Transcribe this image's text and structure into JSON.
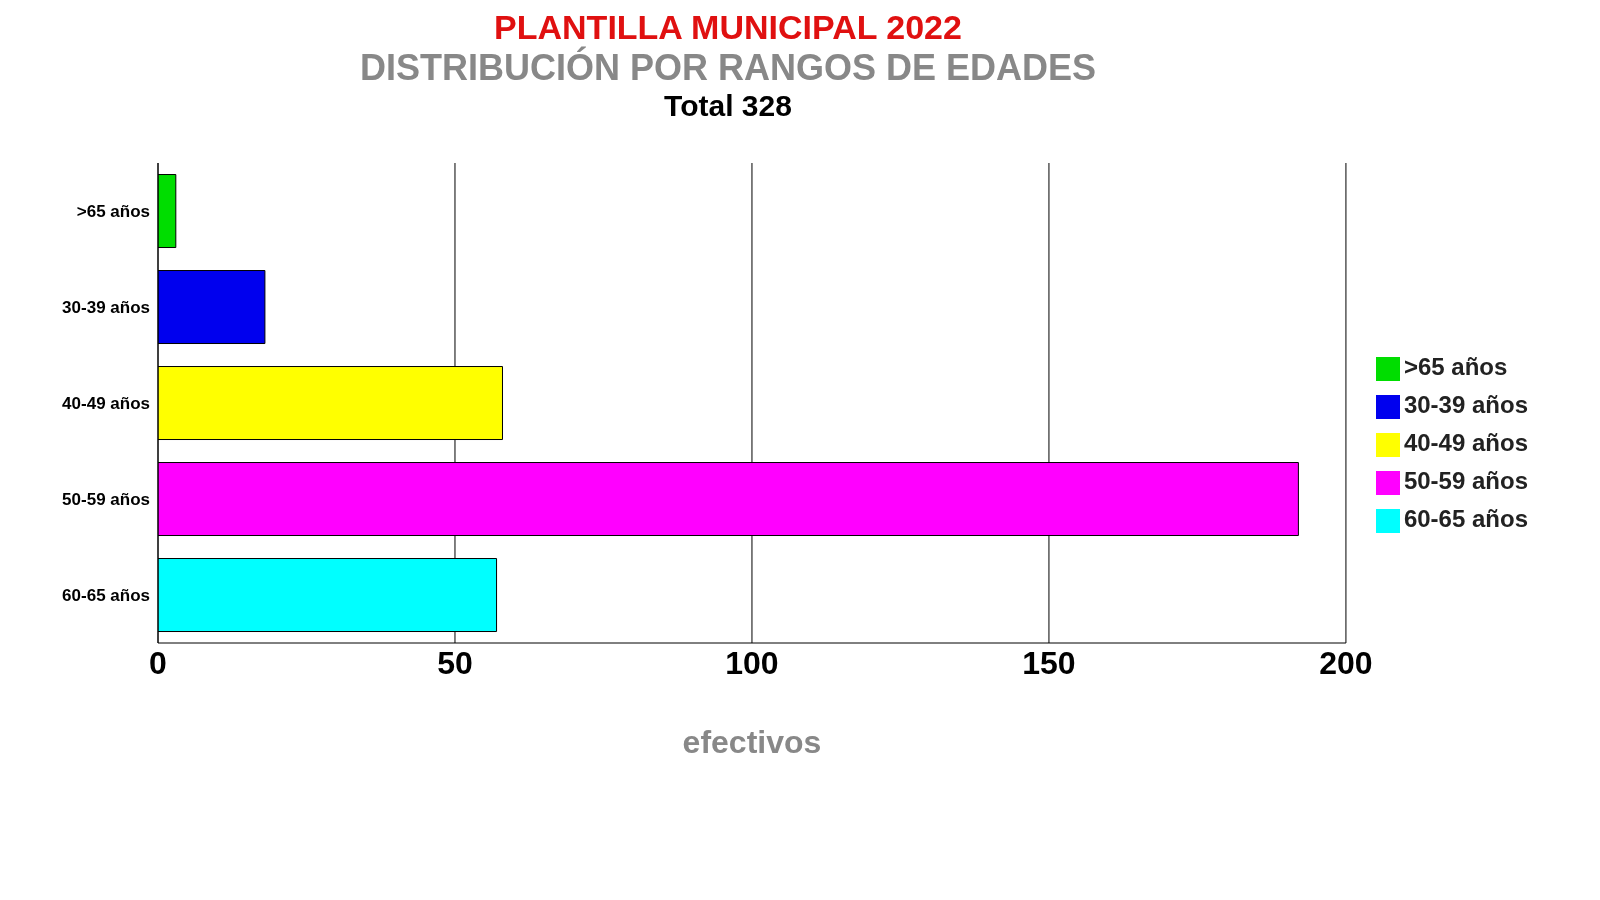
{
  "chart_data": {
    "type": "bar",
    "orientation": "horizontal",
    "stacked": true,
    "title": "PLANTILLA MUNICIPAL 2022",
    "subtitle": "DISTRIBUCIÓN POR RANGOS DE EDADES",
    "annotations": [
      "Total 328"
    ],
    "xlabel": "efectivos",
    "categories": [
      ">65 años",
      "30-39 años",
      "40-49 años",
      "50-59 años",
      "60-65 años"
    ],
    "series": [
      {
        "name": ">65 años",
        "color": "#00dd00",
        "values": [
          3,
          null,
          null,
          null,
          null
        ]
      },
      {
        "name": "30-39 años",
        "color": "#0000ee",
        "values": [
          null,
          18,
          null,
          null,
          null
        ]
      },
      {
        "name": "40-49 años",
        "color": "#ffff00",
        "values": [
          null,
          null,
          58,
          null,
          null
        ]
      },
      {
        "name": "50-59 años",
        "color": "#ff00ff",
        "values": [
          null,
          null,
          null,
          192,
          null
        ]
      },
      {
        "name": "60-65 años",
        "color": "#00ffff",
        "values": [
          null,
          null,
          null,
          null,
          57
        ]
      }
    ],
    "xlim": [
      0,
      200
    ],
    "xticks": [
      0,
      50,
      100,
      150,
      200
    ],
    "grid": "x",
    "legend": "right"
  }
}
